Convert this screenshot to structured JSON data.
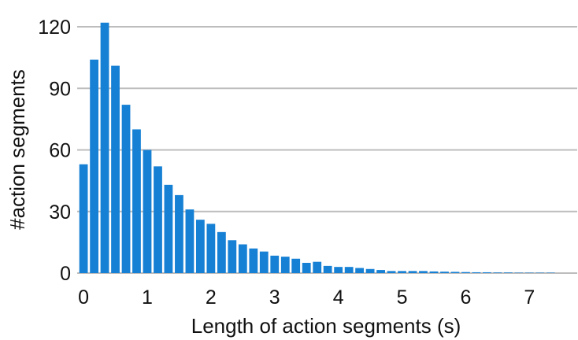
{
  "chart_data": {
    "type": "bar",
    "xlabel": "Length of action segments (s)",
    "ylabel": "#action segments",
    "xlim": [
      -0.1,
      7.75
    ],
    "ylim": [
      0,
      120
    ],
    "x_ticks": [
      0,
      1,
      2,
      3,
      4,
      5,
      6,
      7
    ],
    "y_ticks": [
      0,
      30,
      60,
      90,
      120
    ],
    "bin_width": 0.1667,
    "grid": "horizontal",
    "bar_color": "#1680d4",
    "grid_color": "#bdbdbd",
    "bins": [
      0.0,
      0.167,
      0.333,
      0.5,
      0.667,
      0.833,
      1.0,
      1.167,
      1.333,
      1.5,
      1.667,
      1.833,
      2.0,
      2.167,
      2.333,
      2.5,
      2.667,
      2.833,
      3.0,
      3.167,
      3.333,
      3.5,
      3.667,
      3.833,
      4.0,
      4.167,
      4.333,
      4.5,
      4.667,
      4.833,
      5.0,
      5.167,
      5.333,
      5.5,
      5.667,
      5.833,
      6.0,
      6.167,
      6.333,
      6.5,
      6.667,
      6.833,
      7.0,
      7.167,
      7.333
    ],
    "values": [
      53,
      104,
      122,
      101,
      82,
      70,
      60,
      52,
      43,
      38,
      31,
      26,
      24,
      20,
      16,
      14,
      12,
      10.5,
      8.5,
      8,
      7,
      5,
      5.5,
      3.5,
      3,
      3,
      2.5,
      2,
      1.5,
      1,
      1,
      1,
      1,
      0.8,
      0.7,
      0.6,
      0.5,
      0.4,
      0.4,
      0.3,
      0.3,
      0.2,
      0.2,
      0.2,
      0.2
    ]
  }
}
